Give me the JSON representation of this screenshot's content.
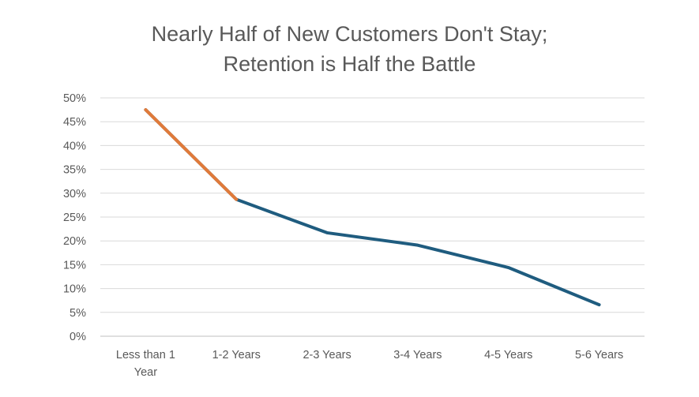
{
  "chart_data": {
    "type": "line",
    "title_lines": [
      "Nearly Half of New Customers Don't Stay;",
      "Retention is Half the Battle"
    ],
    "xlabel": "",
    "ylabel": "",
    "categories": [
      "Less than 1 Year",
      "1-2 Years",
      "2-3 Years",
      "3-4 Years",
      "4-5 Years",
      "5-6 Years"
    ],
    "series": [
      {
        "values": [
          47.5,
          28.7,
          21.7,
          19.1,
          14.4,
          6.6
        ],
        "color": "#1f5c7f"
      }
    ],
    "highlight_segment": {
      "from_index": 0,
      "to_index": 1,
      "color": "#e07a3a"
    },
    "ylim": [
      0,
      50
    ],
    "yticks": [
      0,
      5,
      10,
      15,
      20,
      25,
      30,
      35,
      40,
      45,
      50
    ],
    "ytick_labels": [
      "0%",
      "5%",
      "10%",
      "15%",
      "20%",
      "25%",
      "30%",
      "35%",
      "40%",
      "45%",
      "50%"
    ],
    "grid": true,
    "gridline_color": "#d9d9d9",
    "axis_line_color": "#bfbfbf",
    "legend": "none"
  }
}
